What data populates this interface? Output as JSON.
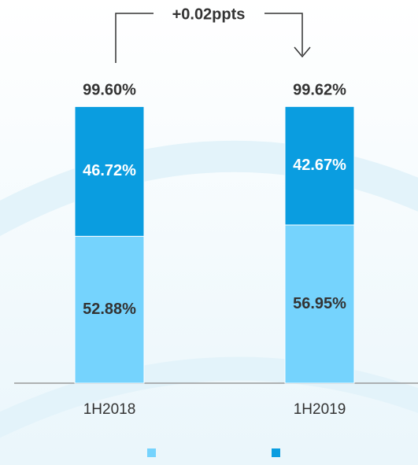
{
  "chart_data": {
    "type": "stacked_bar",
    "categories": [
      "1H2018",
      "1H2019"
    ],
    "series": [
      {
        "color": "#75d3fd",
        "values": [
          52.88,
          56.95
        ],
        "value_labels": [
          "52.88%",
          "56.95%"
        ]
      },
      {
        "color": "#0a9de0",
        "values": [
          46.72,
          42.67
        ],
        "value_labels": [
          "46.72%",
          "42.67%"
        ]
      }
    ],
    "totals": [
      99.6,
      99.62
    ],
    "total_labels": [
      "99.60%",
      "99.62%"
    ],
    "annotation": "+0.02ppts",
    "ylim": [
      0,
      100
    ],
    "legend": "bottom"
  }
}
